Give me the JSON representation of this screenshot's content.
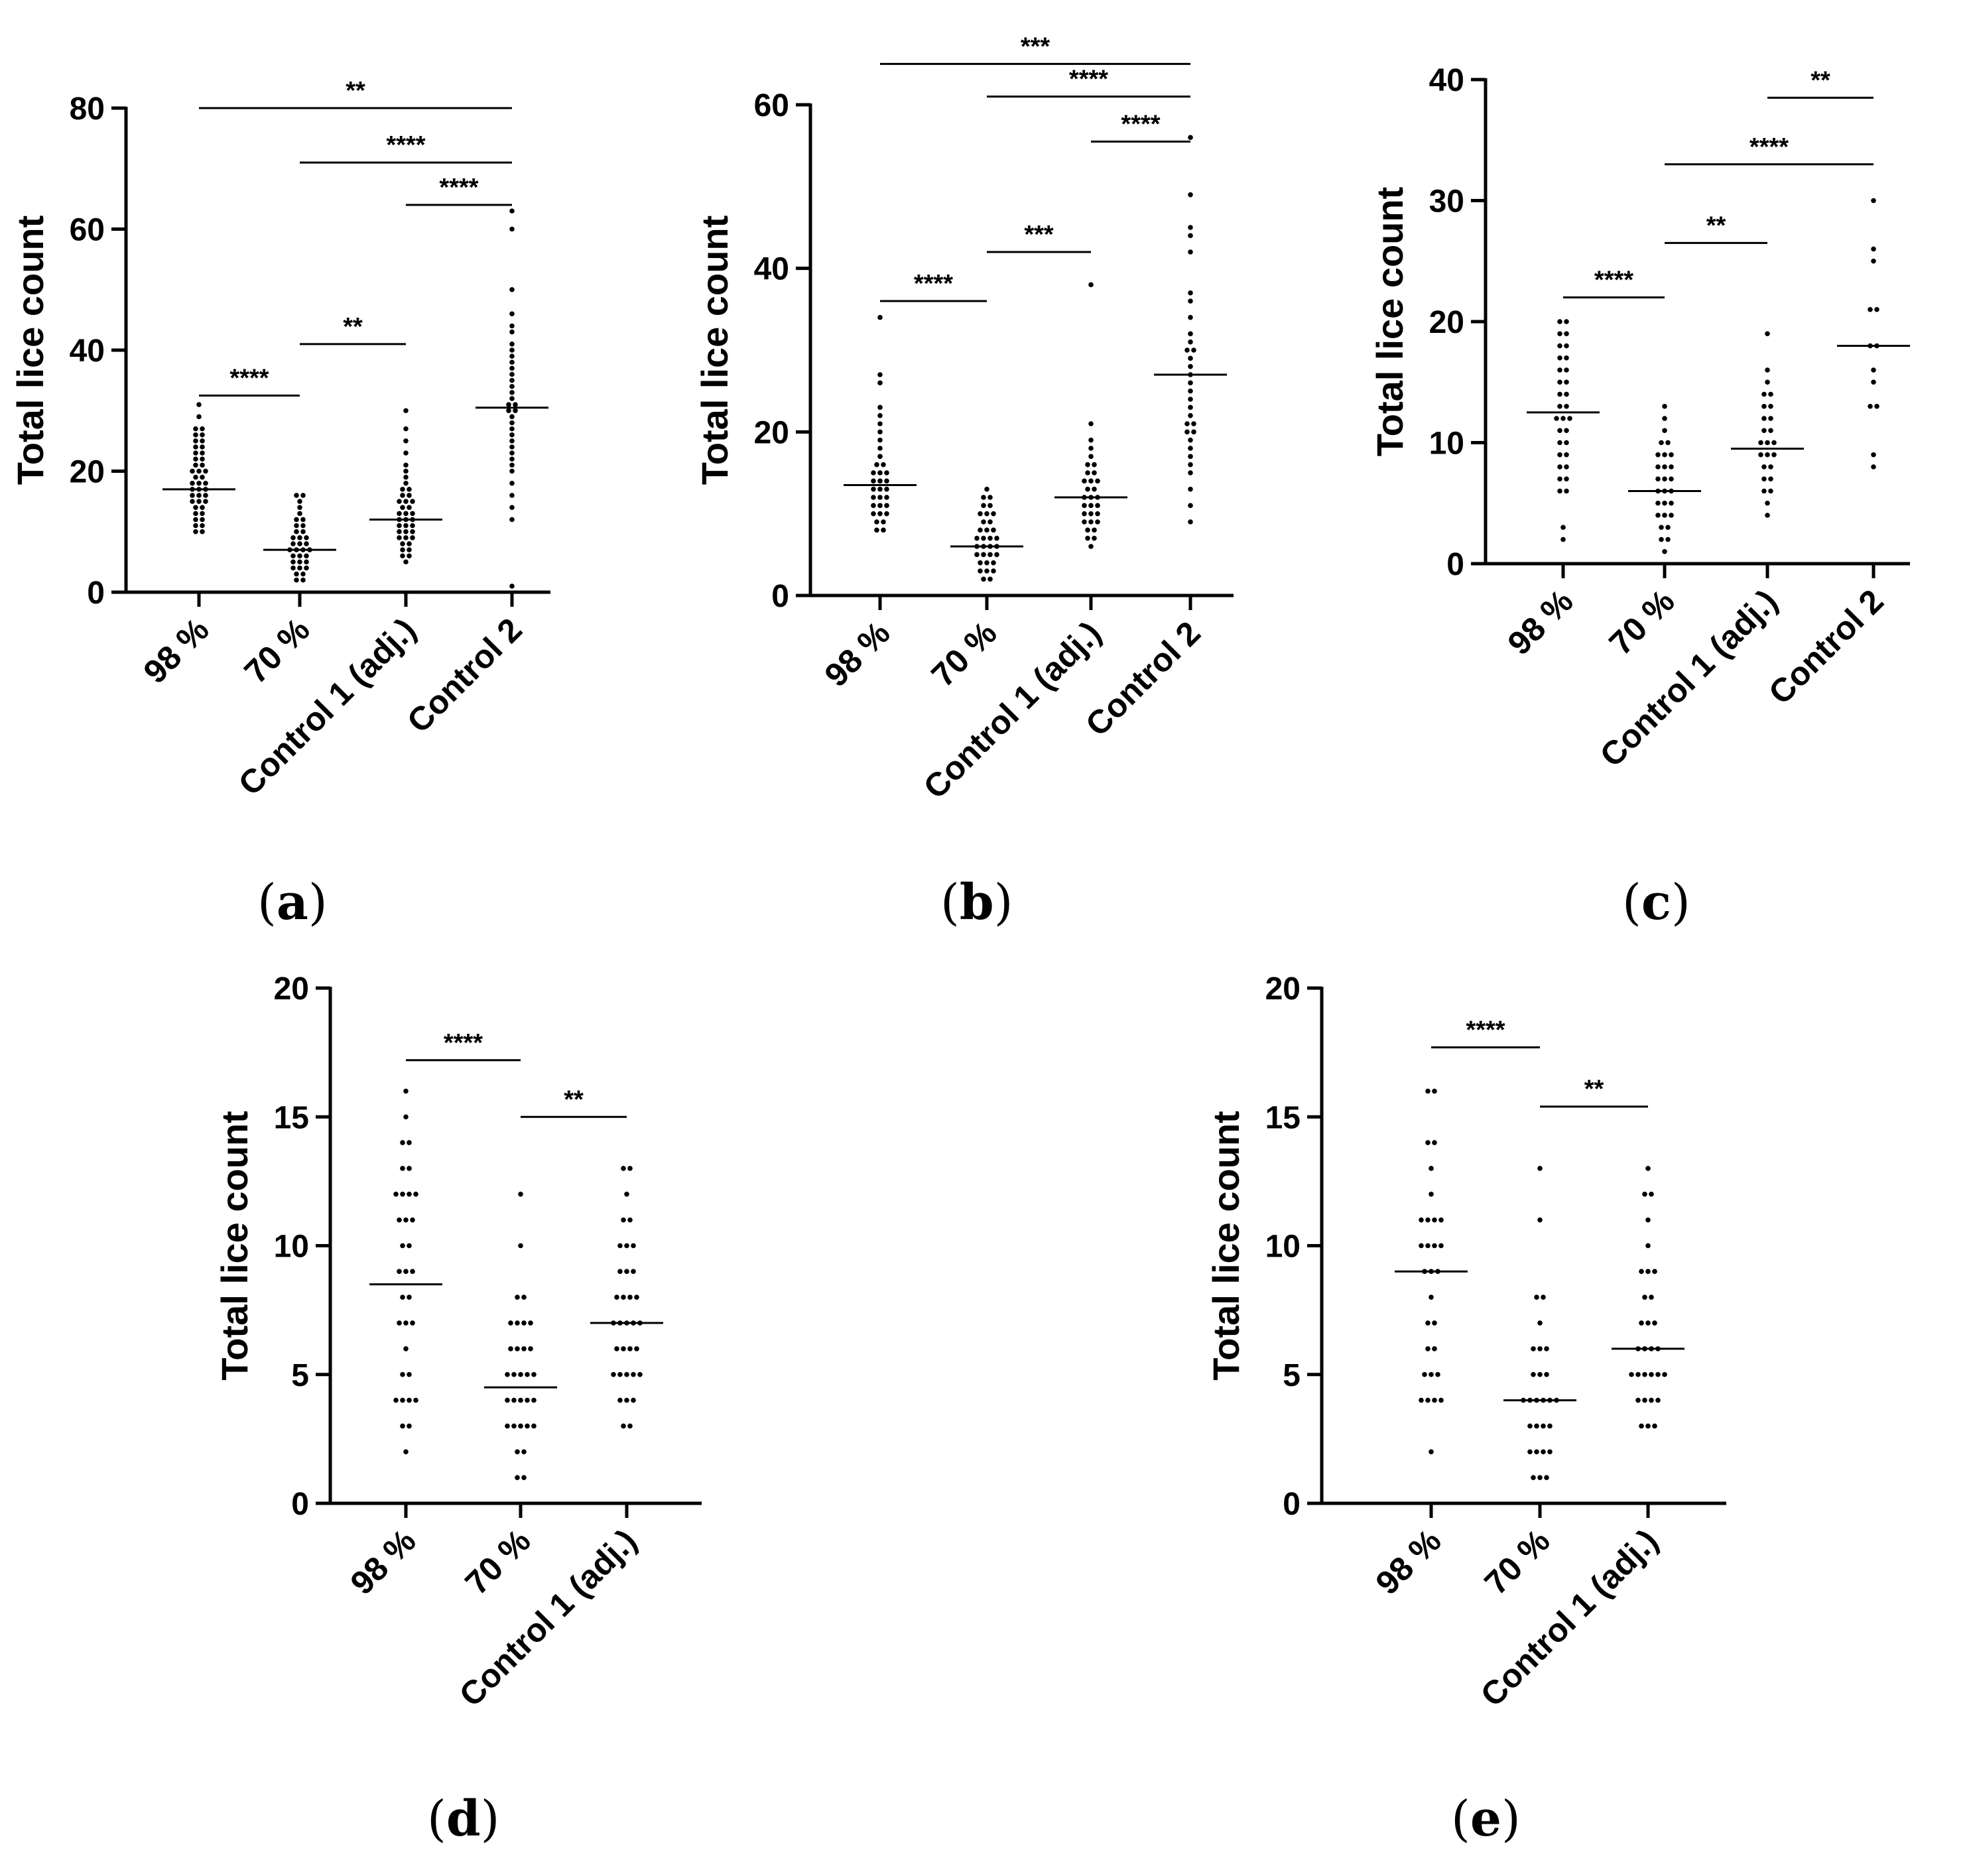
{
  "figure": {
    "panels": [
      {
        "label_open": "(",
        "label_letter": "a",
        "label_close": ")"
      },
      {
        "label_open": "(",
        "label_letter": "b",
        "label_close": ")"
      },
      {
        "label_open": "(",
        "label_letter": "c",
        "label_close": ")"
      },
      {
        "label_open": "(",
        "label_letter": "d",
        "label_close": ")"
      },
      {
        "label_open": "(",
        "label_letter": "e",
        "label_close": ")"
      }
    ]
  },
  "chart_data": [
    {
      "id": "a",
      "type": "scatter",
      "ylabel": "Total lice count",
      "ylim": [
        0,
        80
      ],
      "yticks": [
        0,
        20,
        40,
        60,
        80
      ],
      "categories": [
        "98 %",
        "70 %",
        "Control 1 (adj.)",
        "Control 2"
      ],
      "medians": [
        17,
        7,
        12,
        30.5
      ],
      "series": [
        {
          "name": "98 %",
          "values": [
            31,
            29,
            27,
            27,
            26,
            26,
            25,
            25,
            24,
            24,
            23,
            23,
            22,
            22,
            21,
            21,
            20,
            20,
            20,
            19,
            19,
            18,
            18,
            18,
            17,
            17,
            17,
            16,
            16,
            16,
            15,
            15,
            15,
            14,
            14,
            13,
            13,
            12,
            12,
            11,
            11,
            10,
            10
          ]
        },
        {
          "name": "70 %",
          "values": [
            16,
            16,
            15,
            14,
            13,
            12,
            12,
            11,
            11,
            10,
            10,
            9,
            9,
            9,
            8,
            8,
            8,
            7,
            7,
            7,
            7,
            6,
            6,
            6,
            5,
            5,
            5,
            4,
            4,
            4,
            3,
            3,
            2,
            2
          ]
        },
        {
          "name": "Control 1 (adj.)",
          "values": [
            30,
            27,
            25,
            23,
            21,
            20,
            19,
            18,
            17,
            17,
            16,
            16,
            15,
            15,
            15,
            14,
            14,
            13,
            13,
            13,
            12,
            12,
            12,
            11,
            11,
            11,
            10,
            10,
            10,
            9,
            9,
            9,
            8,
            8,
            7,
            7,
            6,
            6,
            5
          ]
        },
        {
          "name": "Control 2",
          "values": [
            63,
            60,
            50,
            46,
            44,
            43,
            41,
            40,
            39,
            38,
            37,
            36,
            35,
            34,
            33,
            32,
            31,
            31,
            30,
            30,
            29,
            28,
            27,
            26,
            25,
            24,
            23,
            22,
            21,
            20,
            18,
            16,
            14,
            12,
            1
          ]
        }
      ],
      "significance": [
        {
          "label": "**",
          "from": 0,
          "to": 3,
          "y": 80
        },
        {
          "label": "****",
          "from": 1,
          "to": 3,
          "y": 71
        },
        {
          "label": "****",
          "from": 2,
          "to": 3,
          "y": 64
        },
        {
          "label": "**",
          "from": 1,
          "to": 2,
          "y": 41
        },
        {
          "label": "****",
          "from": 0,
          "to": 1,
          "y": 32.5
        }
      ]
    },
    {
      "id": "b",
      "type": "scatter",
      "ylabel": "Total lice count",
      "ylim": [
        0,
        60
      ],
      "yticks": [
        0,
        20,
        40,
        60
      ],
      "categories": [
        "98 %",
        "70 %",
        "Control 1 (adj.)",
        "Control 2"
      ],
      "medians": [
        13.5,
        6,
        12,
        27
      ],
      "series": [
        {
          "name": "98 %",
          "values": [
            34,
            27,
            26,
            23,
            22,
            21,
            20,
            19,
            18,
            17,
            16,
            16,
            15,
            15,
            15,
            14,
            14,
            14,
            13,
            13,
            13,
            12,
            12,
            12,
            11,
            11,
            11,
            10,
            10,
            10,
            9,
            9,
            8,
            8
          ]
        },
        {
          "name": "70 %",
          "values": [
            13,
            12,
            12,
            11,
            11,
            10,
            10,
            10,
            9,
            9,
            8,
            8,
            8,
            7,
            7,
            7,
            7,
            6,
            6,
            6,
            6,
            5,
            5,
            5,
            5,
            4,
            4,
            4,
            3,
            3,
            3,
            2,
            2
          ]
        },
        {
          "name": "Control 1 (adj.)",
          "values": [
            38,
            21,
            19,
            18,
            17,
            16,
            16,
            15,
            15,
            14,
            14,
            14,
            13,
            13,
            12,
            12,
            12,
            11,
            11,
            11,
            10,
            10,
            10,
            9,
            9,
            9,
            8,
            8,
            7,
            7,
            6
          ]
        },
        {
          "name": "Control 2",
          "values": [
            56,
            49,
            45,
            44,
            42,
            37,
            36,
            34,
            32,
            31,
            30,
            30,
            29,
            28,
            27,
            26,
            25,
            24,
            23,
            22,
            21,
            21,
            20,
            20,
            19,
            18,
            17,
            16,
            15,
            13,
            11,
            9
          ]
        }
      ],
      "significance": [
        {
          "label": "***",
          "from": 0,
          "to": 3,
          "y": 65
        },
        {
          "label": "****",
          "from": 1,
          "to": 3,
          "y": 61
        },
        {
          "label": "****",
          "from": 2,
          "to": 3,
          "y": 55.5
        },
        {
          "label": "***",
          "from": 1,
          "to": 2,
          "y": 42
        },
        {
          "label": "****",
          "from": 0,
          "to": 1,
          "y": 36
        }
      ]
    },
    {
      "id": "c",
      "type": "scatter",
      "ylabel": "Total lice count",
      "ylim": [
        0,
        40
      ],
      "yticks": [
        0,
        10,
        20,
        30,
        40
      ],
      "categories": [
        "98 %",
        "70 %",
        "Control 1 (adj.)",
        "Control 2"
      ],
      "medians": [
        12.5,
        6,
        9.5,
        18
      ],
      "series": [
        {
          "name": "98 %",
          "values": [
            20,
            20,
            19,
            19,
            18,
            18,
            17,
            17,
            16,
            16,
            15,
            15,
            14,
            14,
            13,
            13,
            12,
            12,
            12,
            11,
            11,
            10,
            10,
            9,
            9,
            8,
            8,
            7,
            7,
            6,
            6,
            3,
            2
          ]
        },
        {
          "name": "70 %",
          "values": [
            13,
            12,
            11,
            10,
            10,
            9,
            9,
            9,
            8,
            8,
            8,
            7,
            7,
            7,
            6,
            6,
            6,
            5,
            5,
            5,
            4,
            4,
            4,
            3,
            3,
            2,
            2,
            1
          ]
        },
        {
          "name": "Control 1 (adj.)",
          "values": [
            19,
            16,
            15,
            14,
            14,
            13,
            13,
            12,
            12,
            11,
            11,
            10,
            10,
            10,
            9,
            9,
            9,
            8,
            8,
            7,
            7,
            6,
            6,
            5,
            4
          ]
        },
        {
          "name": "Control 2",
          "values": [
            30,
            26,
            25,
            21,
            21,
            18,
            18,
            16,
            15,
            13,
            13,
            9,
            8
          ]
        }
      ],
      "significance": [
        {
          "label": "**",
          "from": 2,
          "to": 3,
          "y": 38.5
        },
        {
          "label": "****",
          "from": 1,
          "to": 3,
          "y": 33
        },
        {
          "label": "**",
          "from": 1,
          "to": 2,
          "y": 26.5
        },
        {
          "label": "****",
          "from": 0,
          "to": 1,
          "y": 22
        }
      ]
    },
    {
      "id": "d",
      "type": "scatter",
      "ylabel": "Total lice count",
      "ylim": [
        0,
        20
      ],
      "yticks": [
        0,
        5,
        10,
        15,
        20
      ],
      "categories": [
        "98 %",
        "70 %",
        "Control 1 (adj.)"
      ],
      "medians": [
        8.5,
        4.5,
        7
      ],
      "series": [
        {
          "name": "98 %",
          "values": [
            16,
            15,
            14,
            14,
            13,
            13,
            12,
            12,
            12,
            12,
            11,
            11,
            11,
            10,
            10,
            9,
            9,
            9,
            8,
            8,
            7,
            7,
            7,
            6,
            5,
            5,
            4,
            4,
            4,
            4,
            3,
            3,
            2
          ]
        },
        {
          "name": "70 %",
          "values": [
            12,
            10,
            8,
            8,
            7,
            7,
            7,
            7,
            6,
            6,
            6,
            6,
            5,
            5,
            5,
            5,
            5,
            4,
            4,
            4,
            4,
            4,
            3,
            3,
            3,
            3,
            3,
            2,
            2,
            1,
            1
          ]
        },
        {
          "name": "Control 1 (adj.)",
          "values": [
            13,
            13,
            12,
            11,
            11,
            10,
            10,
            10,
            9,
            9,
            9,
            8,
            8,
            8,
            8,
            7,
            7,
            7,
            7,
            7,
            6,
            6,
            6,
            6,
            5,
            5,
            5,
            5,
            5,
            4,
            4,
            4,
            3,
            3
          ]
        }
      ],
      "significance": [
        {
          "label": "****",
          "from": 0,
          "to": 1,
          "y": 17.2
        },
        {
          "label": "**",
          "from": 1,
          "to": 2,
          "y": 15
        }
      ]
    },
    {
      "id": "e",
      "type": "scatter",
      "ylabel": "Total lice count",
      "ylim": [
        0,
        20
      ],
      "yticks": [
        0,
        5,
        10,
        15,
        20
      ],
      "categories": [
        "98 %",
        "70 %",
        "Control 1 (adj.)"
      ],
      "medians": [
        9,
        4,
        6
      ],
      "series": [
        {
          "name": "98 %",
          "values": [
            16,
            16,
            14,
            14,
            13,
            12,
            11,
            11,
            11,
            11,
            10,
            10,
            10,
            10,
            9,
            9,
            9,
            8,
            7,
            7,
            6,
            6,
            5,
            5,
            5,
            4,
            4,
            4,
            4,
            2
          ]
        },
        {
          "name": "70 %",
          "values": [
            13,
            11,
            8,
            8,
            7,
            6,
            6,
            6,
            5,
            5,
            5,
            4,
            4,
            4,
            4,
            4,
            4,
            3,
            3,
            3,
            3,
            2,
            2,
            2,
            2,
            1,
            1,
            1
          ]
        },
        {
          "name": "Control 1 (adj.)",
          "values": [
            13,
            12,
            12,
            11,
            10,
            9,
            9,
            9,
            8,
            8,
            7,
            7,
            7,
            6,
            6,
            6,
            6,
            5,
            5,
            5,
            5,
            5,
            5,
            4,
            4,
            4,
            4,
            3,
            3,
            3
          ]
        }
      ],
      "significance": [
        {
          "label": "****",
          "from": 0,
          "to": 1,
          "y": 17.7
        },
        {
          "label": "**",
          "from": 1,
          "to": 2,
          "y": 15.4
        }
      ]
    }
  ]
}
